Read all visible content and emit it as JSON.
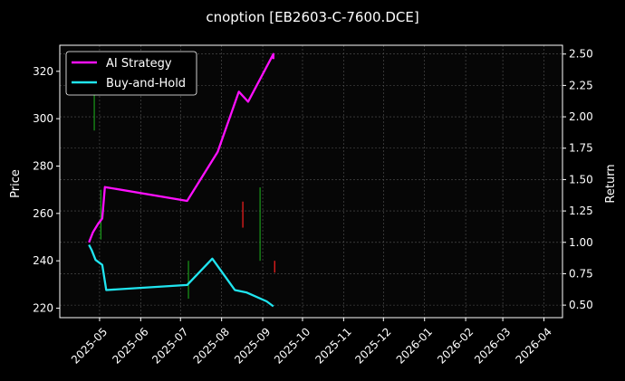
{
  "chart_data": {
    "type": "line",
    "title": "cnoption [EB2603-C-7600.DCE]",
    "ylabel_left": "Price",
    "ylabel_right": "Return",
    "xlabel": "",
    "grid": true,
    "legend_position": "top-left",
    "x_range": [
      "2025-04-01",
      "2026-04-15"
    ],
    "y_left_range": [
      216,
      331
    ],
    "y_right_range": [
      0.4,
      2.57
    ],
    "x_ticks": [
      "2025-05",
      "2025-06",
      "2025-07",
      "2025-08",
      "2025-09",
      "2025-10",
      "2025-11",
      "2025-12",
      "2026-01",
      "2026-02",
      "2026-03",
      "2026-04"
    ],
    "y_left_ticks": [
      220,
      240,
      260,
      280,
      300,
      320
    ],
    "y_right_ticks": [
      "0.50",
      "0.75",
      "1.00",
      "1.25",
      "1.50",
      "1.75",
      "2.00",
      "2.25",
      "2.50"
    ],
    "candles": [
      {
        "date": "2025-04-22",
        "low": 310,
        "high": 326,
        "color": "#ff2020"
      },
      {
        "date": "2025-04-27",
        "low": 295,
        "high": 318,
        "color": "#1a9a1a"
      },
      {
        "date": "2025-05-02",
        "low": 249,
        "high": 270,
        "color": "#1a9a1a"
      },
      {
        "date": "2025-07-07",
        "low": 224,
        "high": 240,
        "color": "#1a9a1a"
      },
      {
        "date": "2025-08-17",
        "low": 254,
        "high": 265,
        "color": "#ff2020"
      },
      {
        "date": "2025-08-30",
        "low": 240,
        "high": 271,
        "color": "#1a9a1a"
      },
      {
        "date": "2025-09-10",
        "low": 235,
        "high": 240,
        "color": "#ff2020"
      }
    ],
    "series": [
      {
        "name": "AI Strategy",
        "color": "#ff10ff",
        "points": [
          [
            "2025-04-23",
            1.0
          ],
          [
            "2025-04-26",
            1.08
          ],
          [
            "2025-04-30",
            1.15
          ],
          [
            "2025-05-03",
            1.19
          ],
          [
            "2025-05-05",
            1.44
          ],
          [
            "2025-07-06",
            1.33
          ],
          [
            "2025-07-29",
            1.72
          ],
          [
            "2025-08-14",
            2.2
          ],
          [
            "2025-08-21",
            2.12
          ],
          [
            "2025-09-09",
            2.5
          ],
          [
            "2025-09-09",
            2.46
          ]
        ]
      },
      {
        "name": "Buy-and-Hold",
        "color": "#20e5f0",
        "points": [
          [
            "2025-04-23",
            0.98
          ],
          [
            "2025-04-25",
            0.94
          ],
          [
            "2025-04-28",
            0.86
          ],
          [
            "2025-05-03",
            0.82
          ],
          [
            "2025-05-06",
            0.62
          ],
          [
            "2025-07-06",
            0.66
          ],
          [
            "2025-07-25",
            0.87
          ],
          [
            "2025-08-11",
            0.62
          ],
          [
            "2025-08-20",
            0.6
          ],
          [
            "2025-09-04",
            0.53
          ],
          [
            "2025-09-09",
            0.49
          ]
        ]
      }
    ]
  }
}
